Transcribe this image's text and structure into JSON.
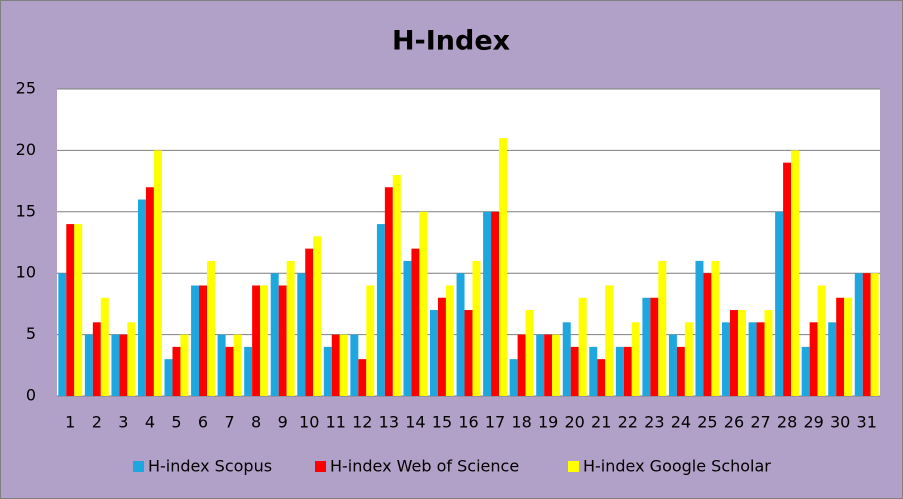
{
  "chart_data": {
    "type": "bar",
    "title": "H-Index",
    "categories": [
      "1",
      "2",
      "3",
      "4",
      "5",
      "6",
      "7",
      "8",
      "9",
      "10",
      "11",
      "12",
      "13",
      "14",
      "15",
      "16",
      "17",
      "18",
      "19",
      "20",
      "21",
      "22",
      "23",
      "24",
      "25",
      "26",
      "27",
      "28",
      "29",
      "30",
      "31"
    ],
    "series": [
      {
        "name": "H-index Scopus",
        "color": "#1ea6df",
        "values": [
          10,
          5,
          5,
          16,
          3,
          9,
          5,
          4,
          10,
          10,
          4,
          5,
          14,
          11,
          7,
          10,
          15,
          3,
          5,
          6,
          4,
          4,
          8,
          5,
          11,
          6,
          6,
          15,
          4,
          6,
          10
        ]
      },
      {
        "name": "H-index Web of Science",
        "color": "#ff0000",
        "values": [
          14,
          6,
          5,
          17,
          4,
          9,
          4,
          9,
          9,
          12,
          5,
          3,
          17,
          12,
          8,
          7,
          15,
          5,
          5,
          4,
          3,
          4,
          8,
          4,
          10,
          7,
          6,
          19,
          6,
          8,
          10
        ]
      },
      {
        "name": "H-index Google Scholar",
        "color": "#ffff00",
        "values": [
          14,
          8,
          6,
          20,
          5,
          11,
          5,
          9,
          11,
          13,
          5,
          9,
          18,
          15,
          9,
          11,
          21,
          7,
          5,
          8,
          9,
          6,
          11,
          6,
          11,
          7,
          7,
          20,
          9,
          8,
          10
        ]
      }
    ],
    "ylim": [
      0,
      25
    ],
    "yticks": [
      0,
      5,
      10,
      15,
      20,
      25
    ],
    "grid": true,
    "legend": "bottom"
  }
}
